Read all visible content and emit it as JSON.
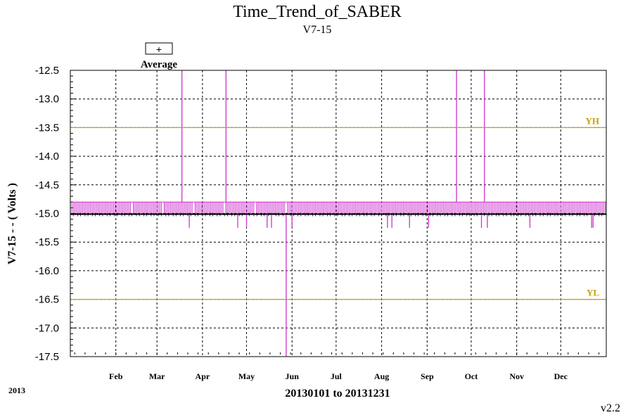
{
  "chart_data": {
    "type": "line",
    "title": "Time_Trend_of_SABER",
    "subtitle": "V7-15",
    "ylabel": "V7-15  - - ( Volts )",
    "xlabel": "20130101 to 20131231",
    "year_label": "2013",
    "version": "v2.2",
    "legend": {
      "symbol": "+",
      "label": "Average",
      "placement": "top-left"
    },
    "ylim": [
      -17.5,
      -12.5
    ],
    "y_ticks": [
      "-12.5",
      "-13.0",
      "-13.5",
      "-14.0",
      "-14.5",
      "-15.0",
      "-15.5",
      "-16.0",
      "-16.5",
      "-17.0",
      "-17.5"
    ],
    "y_tick_values": [
      -12.5,
      -13.0,
      -13.5,
      -14.0,
      -14.5,
      -15.0,
      -15.5,
      -16.0,
      -16.5,
      -17.0,
      -17.5
    ],
    "xlim": [
      "2013-01-01",
      "2013-12-31"
    ],
    "x_ticks": [
      "Feb",
      "Mar",
      "Apr",
      "May",
      "Jun",
      "Jul",
      "Aug",
      "Sep",
      "Oct",
      "Nov",
      "Dec"
    ],
    "x_tick_dates": [
      "2013-02-01",
      "2013-03-01",
      "2013-04-01",
      "2013-05-01",
      "2013-06-01",
      "2013-07-01",
      "2013-08-01",
      "2013-09-01",
      "2013-10-01",
      "2013-11-01",
      "2013-12-01"
    ],
    "grid": true,
    "limits": [
      {
        "label": "YH",
        "value": -13.5
      },
      {
        "label": "YL",
        "value": -16.5
      }
    ],
    "series": [
      {
        "name": "Average",
        "baseline": -15.0,
        "band_upper": -14.8,
        "band_lower": -15.02,
        "spikes_up": [
          "2013-03-18",
          "2013-04-17",
          "2013-09-21",
          "2013-10-10"
        ],
        "spike_up_value": -12.5,
        "spike_down_deep": [
          "2013-05-28"
        ],
        "spike_down_deep_value": -17.5,
        "spikes_down": [
          "2013-03-23",
          "2013-04-25",
          "2013-05-01",
          "2013-05-15",
          "2013-05-18",
          "2013-06-01",
          "2013-08-05",
          "2013-08-08",
          "2013-08-20",
          "2013-09-02",
          "2013-10-08",
          "2013-10-12",
          "2013-11-10",
          "2013-12-22",
          "2013-12-23"
        ],
        "spike_down_value": -15.25
      }
    ]
  },
  "colors": {
    "series": "#cc33cc",
    "limit": "#c8a000",
    "grid": "#000000",
    "baseline": "#000000"
  }
}
